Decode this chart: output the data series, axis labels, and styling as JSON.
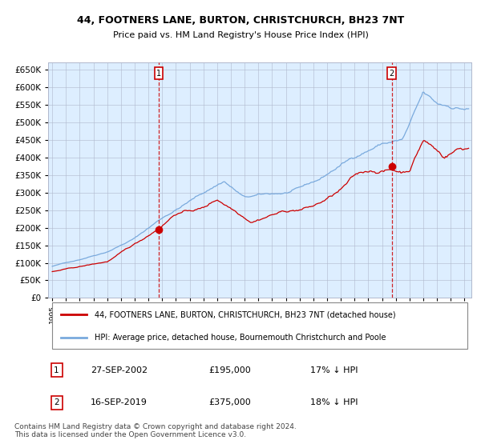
{
  "title": "44, FOOTNERS LANE, BURTON, CHRISTCHURCH, BH23 7NT",
  "subtitle": "Price paid vs. HM Land Registry's House Price Index (HPI)",
  "legend_red": "44, FOOTNERS LANE, BURTON, CHRISTCHURCH, BH23 7NT (detached house)",
  "legend_blue": "HPI: Average price, detached house, Bournemouth Christchurch and Poole",
  "annotation1_label": "1",
  "annotation1_date": "27-SEP-2002",
  "annotation1_price": "£195,000",
  "annotation1_hpi": "17% ↓ HPI",
  "annotation2_label": "2",
  "annotation2_date": "16-SEP-2019",
  "annotation2_price": "£375,000",
  "annotation2_hpi": "18% ↓ HPI",
  "footer": "Contains HM Land Registry data © Crown copyright and database right 2024.\nThis data is licensed under the Open Government Licence v3.0.",
  "red_color": "#cc0000",
  "blue_color": "#7aaadd",
  "bg_color": "#ddeeff",
  "grid_color": "#b0b8cc",
  "sale1_x": 2002.75,
  "sale1_y": 195000,
  "sale2_x": 2019.71,
  "sale2_y": 375000,
  "ylim": [
    0,
    670000
  ],
  "xlim_start": 1994.7,
  "xlim_end": 2025.5
}
